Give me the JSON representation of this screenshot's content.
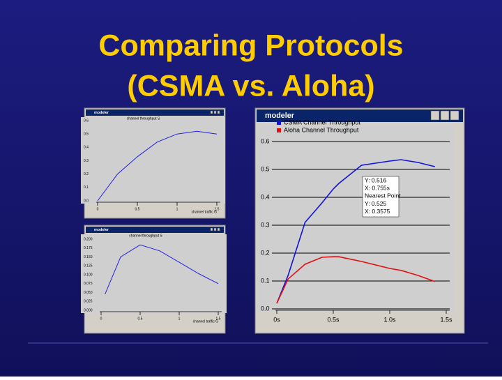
{
  "slide_title": [
    "Comparing Protocols",
    "(CSMA vs. Aloha)"
  ],
  "chart_data": [
    {
      "type": "line",
      "window_title": "modeler",
      "x": [
        0,
        0.1,
        0.25,
        0.4,
        0.5,
        0.55,
        0.75,
        1.0,
        1.1,
        1.25,
        1.4
      ],
      "series": [
        {
          "name": "CSMA Channel Throughput",
          "color": "#1010e0",
          "values": [
            0.02,
            0.12,
            0.31,
            0.38,
            0.43,
            0.45,
            0.515,
            0.53,
            0.535,
            0.525,
            0.51
          ]
        },
        {
          "name": "Aloha Channel Throughput",
          "color": "#e01010",
          "values": [
            0.02,
            0.107,
            0.16,
            0.185,
            0.187,
            0.187,
            0.17,
            0.145,
            0.138,
            0.12,
            0.098
          ]
        }
      ],
      "xlim": [
        0,
        1.5
      ],
      "ylim": [
        0,
        0.6
      ],
      "xticks": [
        {
          "value": 0,
          "label": "0s"
        },
        {
          "value": 0.5,
          "label": "0.5s"
        },
        {
          "value": 1,
          "label": "1.0s"
        },
        {
          "value": 1.5,
          "label": "1.5s"
        }
      ],
      "yticks": [
        {
          "value": 0,
          "label": "0.0"
        },
        0.1,
        0.2,
        0.3,
        0.4,
        0.5,
        0.6
      ],
      "grid": true,
      "legend": "top-left",
      "annotation": [
        "Y: 0.516",
        "X: 0.755s",
        "Nearest Point",
        "Y: 0.525",
        "X: 0.3575"
      ]
    },
    {
      "type": "line",
      "window_title": "modeler",
      "title": "channel throughput S",
      "xlabel": "channel traffic G",
      "x": [
        0,
        0.25,
        0.5,
        0.75,
        1.0,
        1.25,
        1.5
      ],
      "series": [
        {
          "color": "#2020e0",
          "values": [
            0,
            0.2,
            0.33,
            0.44,
            0.5,
            0.52,
            0.5
          ]
        }
      ],
      "xlim": [
        0,
        1.5
      ],
      "ylim": [
        0,
        0.6
      ],
      "xticks": [
        0,
        0.5,
        1,
        1.5
      ],
      "yticks": [
        {
          "value": 0,
          "label": "0.0"
        },
        0.1,
        0.2,
        0.3,
        0.4,
        0.5,
        0.6
      ],
      "grid": false
    },
    {
      "type": "line",
      "window_title": "modeler",
      "title": "channel throughput S",
      "xlabel": "channel traffic G",
      "x": [
        0.05,
        0.25,
        0.5,
        0.75,
        1.0,
        1.25,
        1.5
      ],
      "series": [
        {
          "color": "#2020e0",
          "values": [
            0.045,
            0.15,
            0.184,
            0.167,
            0.135,
            0.103,
            0.075
          ]
        }
      ],
      "xlim": [
        0,
        1.5
      ],
      "ylim": [
        0,
        0.2
      ],
      "xticks": [
        0,
        0.5,
        1,
        1.5
      ],
      "yticks": [
        {
          "value": 0,
          "label": "0.000"
        },
        0.025,
        {
          "value": 0.05,
          "label": "0.050"
        },
        0.075,
        {
          "value": 0.1,
          "label": "0.100"
        },
        0.125,
        {
          "value": 0.15,
          "label": "0.150"
        },
        0.175,
        {
          "value": 0.2,
          "label": "0.200"
        }
      ],
      "grid": false
    }
  ]
}
